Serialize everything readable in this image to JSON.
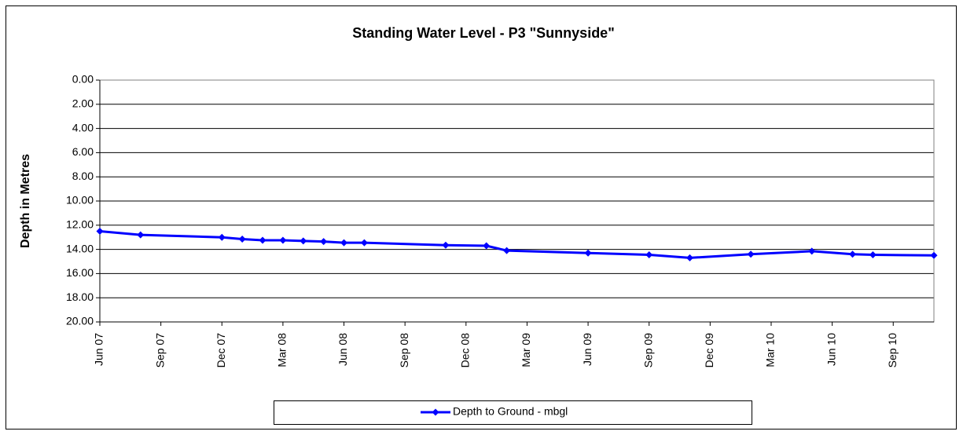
{
  "chart_data": {
    "type": "line",
    "title": "Standing Water Level - P3 \"Sunnyside\"",
    "y_label": "Depth in Metres",
    "x": [
      "2007-06",
      "2007-08",
      "2007-12",
      "2008-01",
      "2008-02",
      "2008-03",
      "2008-04",
      "2008-05",
      "2008-06",
      "2008-07",
      "2008-11",
      "2009-01",
      "2009-02",
      "2009-06",
      "2009-09",
      "2009-11",
      "2010-02",
      "2010-05",
      "2010-07",
      "2010-08",
      "2010-11"
    ],
    "series": [
      {
        "name": "Depth to Ground - mbgl",
        "color": "#0000ff",
        "values": [
          12.5,
          12.8,
          13.0,
          13.15,
          13.25,
          13.25,
          13.3,
          13.35,
          13.45,
          13.45,
          13.65,
          13.7,
          14.1,
          14.3,
          14.45,
          14.7,
          14.4,
          14.15,
          14.4,
          14.45,
          14.5
        ]
      }
    ],
    "xlim": [
      "2007-06",
      "2010-11"
    ],
    "xticks": [
      {
        "value": "2007-06",
        "label": "Jun 07"
      },
      {
        "value": "2007-09",
        "label": "Sep 07"
      },
      {
        "value": "2007-12",
        "label": "Dec 07"
      },
      {
        "value": "2008-03",
        "label": "Mar 08"
      },
      {
        "value": "2008-06",
        "label": "Jun 08"
      },
      {
        "value": "2008-09",
        "label": "Sep 08"
      },
      {
        "value": "2008-12",
        "label": "Dec 08"
      },
      {
        "value": "2009-03",
        "label": "Mar 09"
      },
      {
        "value": "2009-06",
        "label": "Jun 09"
      },
      {
        "value": "2009-09",
        "label": "Sep 09"
      },
      {
        "value": "2009-12",
        "label": "Dec 09"
      },
      {
        "value": "2010-03",
        "label": "Mar 10"
      },
      {
        "value": "2010-06",
        "label": "Jun 10"
      },
      {
        "value": "2010-09",
        "label": "Sep 10"
      }
    ],
    "ylim": [
      0,
      20
    ],
    "invert_y": true,
    "yticks": [
      {
        "value": 0,
        "label": "0.00"
      },
      {
        "value": 2,
        "label": "2.00"
      },
      {
        "value": 4,
        "label": "4.00"
      },
      {
        "value": 6,
        "label": "6.00"
      },
      {
        "value": 8,
        "label": "8.00"
      },
      {
        "value": 10,
        "label": "10.00"
      },
      {
        "value": 12,
        "label": "12.00"
      },
      {
        "value": 14,
        "label": "14.00"
      },
      {
        "value": 16,
        "label": "16.00"
      },
      {
        "value": 18,
        "label": "18.00"
      },
      {
        "value": 20,
        "label": "20.00"
      }
    ],
    "grid": true,
    "legend": "bottom"
  }
}
